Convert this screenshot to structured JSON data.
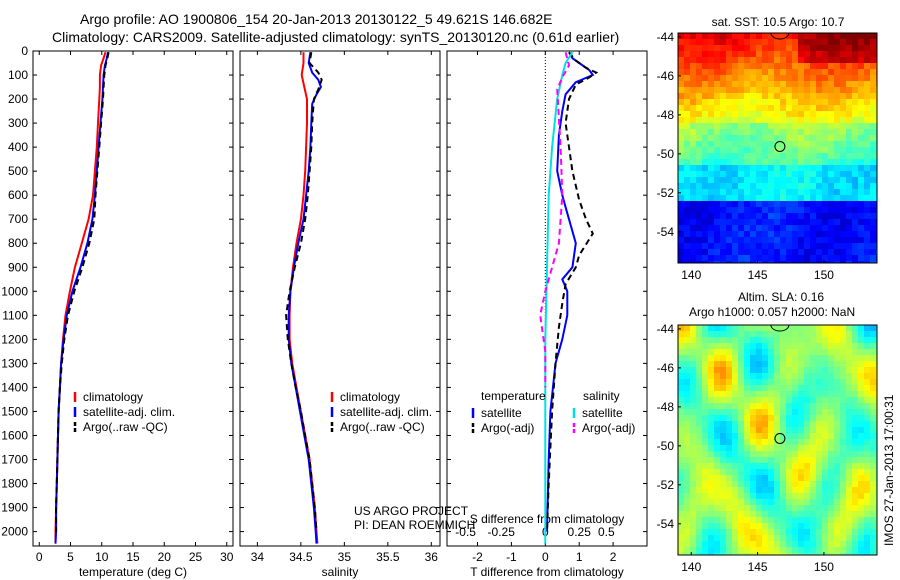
{
  "header": {
    "line1": "Argo profile: AO 1900806_154 20-Jan-2013 20130122_5 49.621S 146.682E",
    "line2": "Climatology: CARS2009. Satellite-adjusted climatology: synTS_20130120.nc (0.61d earlier)"
  },
  "colors": {
    "climatology": "#ff0000",
    "satellite": "#0000ff",
    "argo": "#000000",
    "s_satellite": "#00e0e0",
    "s_argo": "#ff00ff"
  },
  "side_text": "IMOS 27-Jan-2013 17:00:31",
  "project_text": [
    "US ARGO PROJECT",
    "PI: DEAN ROEMMICH"
  ],
  "chart_data": [
    {
      "type": "line",
      "id": "temperature",
      "xlabel": "temperature (deg C)",
      "xlim": [
        -1,
        31
      ],
      "xticks": [
        0,
        5,
        10,
        15,
        20,
        25,
        30
      ],
      "ylim": [
        2060,
        0
      ],
      "yticks": [
        0,
        100,
        200,
        300,
        400,
        500,
        600,
        700,
        800,
        900,
        1000,
        1100,
        1200,
        1300,
        1400,
        1500,
        1600,
        1700,
        1800,
        1900,
        2000
      ],
      "legend": [
        "climatology",
        "satellite-adj. clim.",
        "Argo(..raw -QC)"
      ],
      "series": [
        {
          "name": "climatology",
          "style": "solid",
          "points": [
            [
              10.6,
              5
            ],
            [
              10.3,
              30
            ],
            [
              9.9,
              60
            ],
            [
              9.7,
              100
            ],
            [
              9.7,
              150
            ],
            [
              9.6,
              200
            ],
            [
              9.4,
              300
            ],
            [
              9.2,
              400
            ],
            [
              8.9,
              500
            ],
            [
              8.6,
              600
            ],
            [
              7.9,
              700
            ],
            [
              6.8,
              800
            ],
            [
              5.7,
              900
            ],
            [
              4.9,
              1000
            ],
            [
              4.2,
              1100
            ],
            [
              3.8,
              1200
            ],
            [
              3.5,
              1300
            ],
            [
              3.3,
              1400
            ],
            [
              3.1,
              1500
            ],
            [
              3.0,
              1600
            ],
            [
              2.9,
              1700
            ],
            [
              2.8,
              1800
            ],
            [
              2.7,
              1900
            ],
            [
              2.6,
              2000
            ],
            [
              2.6,
              2050
            ]
          ]
        },
        {
          "name": "satellite-adj. clim.",
          "style": "solid",
          "points": [
            [
              11.0,
              5
            ],
            [
              10.8,
              30
            ],
            [
              10.5,
              60
            ],
            [
              10.3,
              100
            ],
            [
              10.2,
              150
            ],
            [
              10.1,
              200
            ],
            [
              9.8,
              300
            ],
            [
              9.5,
              400
            ],
            [
              9.2,
              500
            ],
            [
              8.9,
              600
            ],
            [
              8.5,
              700
            ],
            [
              7.7,
              800
            ],
            [
              6.6,
              900
            ],
            [
              5.3,
              1000
            ],
            [
              4.4,
              1100
            ],
            [
              3.9,
              1200
            ],
            [
              3.5,
              1300
            ],
            [
              3.3,
              1400
            ],
            [
              3.1,
              1500
            ],
            [
              3.0,
              1600
            ],
            [
              2.9,
              1700
            ],
            [
              2.8,
              1800
            ],
            [
              2.7,
              1900
            ],
            [
              2.7,
              2000
            ],
            [
              2.6,
              2050
            ]
          ]
        },
        {
          "name": "Argo(..raw -QC)",
          "style": "dashed",
          "points": [
            [
              11.1,
              5
            ],
            [
              10.9,
              30
            ],
            [
              10.6,
              60
            ],
            [
              10.4,
              100
            ],
            [
              10.3,
              150
            ],
            [
              10.2,
              200
            ],
            [
              9.9,
              300
            ],
            [
              9.6,
              400
            ],
            [
              9.3,
              500
            ],
            [
              9.0,
              600
            ],
            [
              8.8,
              700
            ],
            [
              8.0,
              800
            ],
            [
              6.9,
              900
            ],
            [
              5.6,
              1000
            ],
            [
              4.6,
              1100
            ],
            [
              4.0,
              1200
            ],
            [
              3.6,
              1300
            ],
            [
              3.3,
              1400
            ],
            [
              3.1,
              1500
            ],
            [
              3.0,
              1600
            ],
            [
              2.9,
              1700
            ],
            [
              2.8,
              1800
            ],
            [
              2.7,
              1900
            ],
            [
              2.7,
              2000
            ]
          ]
        }
      ]
    },
    {
      "type": "line",
      "id": "salinity",
      "xlabel": "salinity",
      "xlim": [
        33.8,
        36.1
      ],
      "xticks": [
        34,
        34.5,
        35,
        35.5,
        36
      ],
      "ylim": [
        2060,
        0
      ],
      "legend": [
        "climatology",
        "satellite-adj. clim.",
        "Argo(..raw -QC)"
      ],
      "series": [
        {
          "name": "climatology",
          "style": "solid",
          "points": [
            [
              34.53,
              5
            ],
            [
              34.53,
              50
            ],
            [
              34.51,
              100
            ],
            [
              34.54,
              150
            ],
            [
              34.57,
              200
            ],
            [
              34.57,
              300
            ],
            [
              34.56,
              400
            ],
            [
              34.55,
              500
            ],
            [
              34.53,
              600
            ],
            [
              34.5,
              700
            ],
            [
              34.45,
              800
            ],
            [
              34.41,
              900
            ],
            [
              34.38,
              1000
            ],
            [
              34.37,
              1100
            ],
            [
              34.37,
              1200
            ],
            [
              34.4,
              1300
            ],
            [
              34.45,
              1400
            ],
            [
              34.5,
              1500
            ],
            [
              34.55,
              1600
            ],
            [
              34.6,
              1700
            ],
            [
              34.63,
              1800
            ],
            [
              34.66,
              1900
            ],
            [
              34.68,
              2000
            ],
            [
              34.69,
              2050
            ]
          ]
        },
        {
          "name": "satellite-adj. clim.",
          "style": "solid",
          "points": [
            [
              34.61,
              5
            ],
            [
              34.59,
              50
            ],
            [
              34.63,
              90
            ],
            [
              34.7,
              120
            ],
            [
              34.73,
              150
            ],
            [
              34.68,
              180
            ],
            [
              34.63,
              220
            ],
            [
              34.62,
              300
            ],
            [
              34.61,
              400
            ],
            [
              34.59,
              500
            ],
            [
              34.56,
              600
            ],
            [
              34.53,
              700
            ],
            [
              34.47,
              800
            ],
            [
              34.42,
              900
            ],
            [
              34.38,
              1000
            ],
            [
              34.36,
              1100
            ],
            [
              34.36,
              1200
            ],
            [
              34.39,
              1300
            ],
            [
              34.44,
              1400
            ],
            [
              34.49,
              1500
            ],
            [
              34.54,
              1600
            ],
            [
              34.59,
              1700
            ],
            [
              34.62,
              1800
            ],
            [
              34.65,
              1900
            ],
            [
              34.67,
              2000
            ],
            [
              34.68,
              2050
            ]
          ]
        },
        {
          "name": "Argo(..raw -QC)",
          "style": "dashed",
          "points": [
            [
              34.62,
              5
            ],
            [
              34.6,
              50
            ],
            [
              34.7,
              90
            ],
            [
              34.74,
              120
            ],
            [
              34.7,
              160
            ],
            [
              34.65,
              200
            ],
            [
              34.63,
              300
            ],
            [
              34.62,
              400
            ],
            [
              34.6,
              500
            ],
            [
              34.58,
              600
            ],
            [
              34.55,
              700
            ],
            [
              34.5,
              800
            ],
            [
              34.43,
              900
            ],
            [
              34.37,
              1000
            ],
            [
              34.33,
              1100
            ],
            [
              34.35,
              1200
            ],
            [
              34.39,
              1300
            ],
            [
              34.44,
              1400
            ],
            [
              34.5,
              1500
            ],
            [
              34.55,
              1600
            ],
            [
              34.6,
              1700
            ],
            [
              34.63,
              1800
            ],
            [
              34.66,
              1900
            ],
            [
              34.68,
              2000
            ]
          ]
        }
      ]
    },
    {
      "type": "line",
      "id": "difference",
      "xlabel": "T difference from climatology",
      "xlabel2": "S difference from climatology",
      "xlim": [
        -2.9,
        3.0
      ],
      "xticks": [
        -2,
        -1,
        0,
        1,
        2
      ],
      "xticks_s": [
        "-0.5",
        "-0.25",
        "0",
        "0.25",
        "0.5"
      ],
      "xticks_s_pos": [
        -2,
        -1,
        0,
        1,
        2
      ],
      "ylim": [
        2060,
        0
      ],
      "legend_t_title": "temperature",
      "legend_s_title": "salinity",
      "legend_t": [
        "satellite",
        "Argo(-adj)"
      ],
      "legend_s": [
        "satellite",
        "Argo(-adj)"
      ],
      "series": [
        {
          "name": "T satellite",
          "style": "solid",
          "color": "#0000ff",
          "points": [
            [
              0.7,
              5
            ],
            [
              0.8,
              30
            ],
            [
              1.0,
              50
            ],
            [
              1.3,
              80
            ],
            [
              1.4,
              100
            ],
            [
              0.9,
              130
            ],
            [
              0.6,
              180
            ],
            [
              0.5,
              250
            ],
            [
              0.4,
              350
            ],
            [
              0.35,
              500
            ],
            [
              0.5,
              600
            ],
            [
              0.6,
              650
            ],
            [
              0.9,
              800
            ],
            [
              0.8,
              900
            ],
            [
              0.5,
              950
            ],
            [
              0.65,
              1000
            ],
            [
              0.65,
              1100
            ],
            [
              0.5,
              1200
            ],
            [
              0.3,
              1300
            ],
            [
              0.15,
              1500
            ],
            [
              0.1,
              1700
            ],
            [
              0.05,
              2000
            ]
          ]
        },
        {
          "name": "T Argo(-adj)",
          "style": "dashed",
          "color": "#000000",
          "points": [
            [
              0.7,
              5
            ],
            [
              0.9,
              40
            ],
            [
              1.2,
              70
            ],
            [
              1.5,
              90
            ],
            [
              1.3,
              110
            ],
            [
              0.9,
              140
            ],
            [
              0.7,
              200
            ],
            [
              0.6,
              300
            ],
            [
              0.8,
              500
            ],
            [
              1.0,
              620
            ],
            [
              1.2,
              700
            ],
            [
              1.4,
              760
            ],
            [
              1.0,
              850
            ],
            [
              0.9,
              900
            ],
            [
              0.6,
              970
            ],
            [
              0.5,
              1050
            ],
            [
              0.4,
              1150
            ],
            [
              0.3,
              1300
            ],
            [
              0.2,
              1500
            ],
            [
              0.1,
              1800
            ],
            [
              0.05,
              2000
            ]
          ]
        },
        {
          "name": "S satellite",
          "style": "solid",
          "color": "#00e0e0",
          "points": [
            [
              0.8,
              5
            ],
            [
              0.6,
              50
            ],
            [
              0.5,
              100
            ],
            [
              0.35,
              200
            ],
            [
              0.2,
              400
            ],
            [
              0.1,
              600
            ],
            [
              0.05,
              900
            ],
            [
              0.0,
              1200
            ],
            [
              0.0,
              1600
            ],
            [
              0.0,
              2050
            ]
          ]
        },
        {
          "name": "S Argo(-adj)",
          "style": "dashed",
          "color": "#ff00ff",
          "points": [
            [
              0.6,
              5
            ],
            [
              0.7,
              60
            ],
            [
              0.5,
              110
            ],
            [
              0.35,
              160
            ],
            [
              0.45,
              400
            ],
            [
              0.5,
              600
            ],
            [
              0.4,
              800
            ],
            [
              0.2,
              900
            ],
            [
              0.0,
              1000
            ],
            [
              -0.15,
              1100
            ],
            [
              0.0,
              1250
            ],
            [
              0.0,
              1400
            ]
          ]
        }
      ]
    },
    {
      "type": "heatmap",
      "id": "sst_map",
      "title": "sat. SST: 10.5 Argo: 10.7",
      "xticks": [
        140,
        145,
        150
      ],
      "yticks": [
        -44,
        -46,
        -48,
        -50,
        -52,
        -54
      ],
      "xlim": [
        139,
        154
      ],
      "ylim": [
        -55.6,
        -43.8
      ],
      "marker": [
        146.682,
        -49.621
      ]
    },
    {
      "type": "heatmap",
      "id": "sla_map",
      "title_lines": [
        "Altim. SLA: 0.16",
        "Argo h1000: 0.057 h2000: NaN"
      ],
      "xticks": [
        140,
        145,
        150
      ],
      "yticks": [
        -44,
        -46,
        -48,
        -50,
        -52,
        -54
      ],
      "xlim": [
        139,
        154
      ],
      "ylim": [
        -55.6,
        -43.8
      ],
      "marker": [
        146.682,
        -49.621
      ]
    }
  ]
}
